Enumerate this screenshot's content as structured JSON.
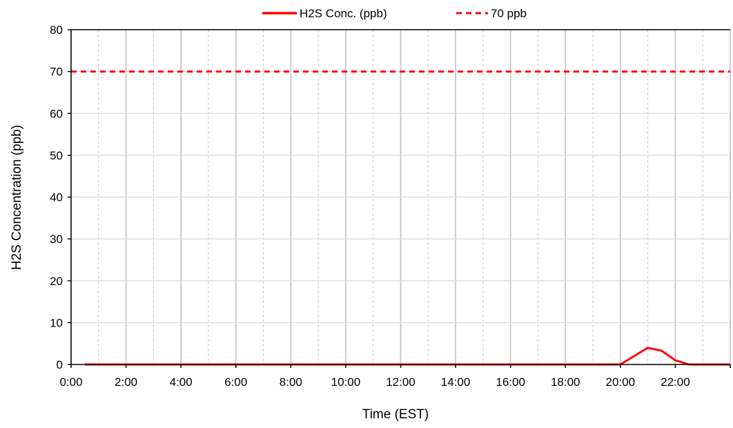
{
  "chart_data": {
    "type": "line",
    "xlabel": "Time (EST)",
    "ylabel": "H2S Concentration (ppb)",
    "xlim_hours": [
      0,
      24
    ],
    "ylim": [
      0,
      80
    ],
    "y_ticks": [
      0,
      10,
      20,
      30,
      40,
      50,
      60,
      70,
      80
    ],
    "x_ticks": [
      "0:00",
      "2:00",
      "4:00",
      "6:00",
      "8:00",
      "10:00",
      "12:00",
      "14:00",
      "16:00",
      "18:00",
      "20:00",
      "22:00"
    ],
    "x_tick_hours": [
      0,
      2,
      4,
      6,
      8,
      10,
      12,
      14,
      16,
      18,
      20,
      22
    ],
    "major_grid_hours": [
      0,
      2,
      4,
      6,
      8,
      10,
      12,
      14,
      16,
      18,
      20,
      22,
      24
    ],
    "minor_grid_hours": [
      1,
      3,
      5,
      7,
      9,
      11,
      13,
      15,
      17,
      19,
      21,
      23
    ],
    "horizontal_grid": true,
    "legend_position": "top",
    "series": [
      {
        "name": "H2S Conc. (ppb)",
        "style": "solid",
        "color": "#ff0000",
        "x_hours": [
          0.5,
          1,
          2,
          3,
          4,
          5,
          6,
          7,
          8,
          9,
          10,
          11,
          12,
          13,
          14,
          15,
          16,
          17,
          18,
          19,
          20,
          20.5,
          21,
          21.5,
          22,
          22.5,
          23,
          23.5,
          24
        ],
        "values": [
          0,
          0,
          0,
          0,
          0,
          0,
          0,
          0,
          0,
          0,
          0,
          0,
          0,
          0,
          0,
          0,
          0,
          0,
          0,
          0,
          0,
          2,
          4,
          3.3,
          1,
          0,
          0,
          0,
          0
        ]
      },
      {
        "name": "70 ppb",
        "style": "dashed",
        "color": "#ff0000",
        "x_hours": [
          0,
          24
        ],
        "values": [
          70,
          70
        ]
      }
    ]
  },
  "colors": {
    "axis": "#000000",
    "major_grid": "#c0c0c0",
    "minor_grid": "#c8c8c8",
    "horizontal_grid": "#d9d9d9",
    "series": "#ff0000"
  }
}
